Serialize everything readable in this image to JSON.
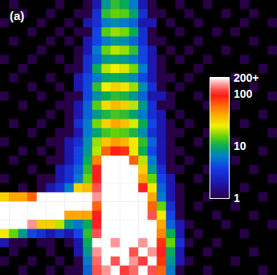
{
  "chart_data": {
    "type": "heatmap",
    "title": "(a)",
    "tick_labels": false,
    "colorbar": {
      "range": [
        1,
        200
      ],
      "ticks": [
        1,
        10,
        100,
        {
          "value": 200,
          "label": "200+"
        }
      ],
      "log": true
    },
    "cells": [
      [
        0,
        1,
        0,
        0,
        0,
        0,
        1,
        0,
        0,
        1,
        2,
        8,
        12,
        10,
        6,
        2,
        1,
        0,
        0,
        1,
        0,
        0,
        1,
        0,
        0,
        0,
        1,
        0,
        0,
        0
      ],
      [
        0,
        0,
        1,
        0,
        0,
        1,
        0,
        0,
        1,
        1,
        3,
        12,
        15,
        14,
        9,
        3,
        1,
        1,
        0,
        0,
        1,
        0,
        0,
        0,
        1,
        0,
        0,
        1,
        0,
        0
      ],
      [
        1,
        0,
        0,
        0,
        1,
        0,
        0,
        1,
        0,
        2,
        3,
        6,
        7,
        6,
        5,
        2,
        2,
        0,
        1,
        0,
        0,
        1,
        0,
        0,
        0,
        0,
        1,
        0,
        0,
        1
      ],
      [
        0,
        0,
        0,
        1,
        0,
        0,
        1,
        0,
        1,
        1,
        4,
        14,
        18,
        16,
        10,
        3,
        1,
        0,
        0,
        1,
        0,
        0,
        0,
        1,
        0,
        1,
        0,
        0,
        0,
        0
      ],
      [
        0,
        1,
        0,
        0,
        0,
        1,
        0,
        1,
        0,
        2,
        4,
        6,
        8,
        7,
        5,
        3,
        1,
        1,
        0,
        0,
        0,
        1,
        0,
        0,
        0,
        0,
        0,
        1,
        0,
        0
      ],
      [
        0,
        0,
        0,
        0,
        1,
        0,
        0,
        0,
        1,
        2,
        6,
        15,
        20,
        18,
        12,
        4,
        2,
        0,
        1,
        0,
        1,
        0,
        0,
        0,
        1,
        0,
        0,
        0,
        0,
        1
      ],
      [
        1,
        0,
        0,
        1,
        0,
        0,
        1,
        0,
        1,
        3,
        5,
        8,
        9,
        8,
        6,
        4,
        2,
        1,
        0,
        1,
        0,
        0,
        1,
        0,
        0,
        0,
        1,
        0,
        0,
        0
      ],
      [
        0,
        0,
        1,
        0,
        0,
        0,
        0,
        1,
        1,
        3,
        10,
        20,
        24,
        22,
        16,
        6,
        2,
        1,
        0,
        0,
        0,
        1,
        0,
        0,
        0,
        0,
        0,
        0,
        1,
        0
      ],
      [
        0,
        1,
        0,
        0,
        0,
        1,
        0,
        0,
        2,
        4,
        6,
        9,
        10,
        9,
        7,
        4,
        2,
        1,
        1,
        0,
        1,
        0,
        0,
        0,
        0,
        1,
        0,
        0,
        0,
        0
      ],
      [
        0,
        0,
        0,
        1,
        0,
        0,
        1,
        0,
        2,
        4,
        12,
        24,
        30,
        26,
        18,
        7,
        3,
        1,
        0,
        1,
        0,
        0,
        0,
        1,
        0,
        0,
        0,
        1,
        0,
        0
      ],
      [
        1,
        0,
        0,
        0,
        1,
        0,
        0,
        1,
        1,
        4,
        7,
        10,
        12,
        11,
        8,
        5,
        2,
        2,
        1,
        0,
        0,
        1,
        0,
        0,
        0,
        0,
        0,
        0,
        0,
        1
      ],
      [
        0,
        0,
        1,
        0,
        0,
        0,
        1,
        1,
        2,
        5,
        14,
        28,
        35,
        30,
        20,
        8,
        3,
        1,
        1,
        0,
        0,
        0,
        1,
        0,
        0,
        1,
        0,
        0,
        0,
        0
      ],
      [
        0,
        0,
        0,
        0,
        0,
        1,
        0,
        1,
        2,
        5,
        8,
        11,
        13,
        12,
        9,
        6,
        3,
        2,
        0,
        1,
        0,
        0,
        0,
        0,
        1,
        0,
        0,
        0,
        1,
        0
      ],
      [
        0,
        1,
        0,
        0,
        1,
        0,
        0,
        1,
        3,
        6,
        16,
        30,
        40,
        34,
        22,
        10,
        4,
        2,
        1,
        0,
        1,
        0,
        0,
        0,
        0,
        0,
        1,
        0,
        0,
        0
      ],
      [
        0,
        0,
        0,
        1,
        0,
        0,
        1,
        1,
        2,
        6,
        9,
        13,
        15,
        14,
        11,
        7,
        3,
        2,
        1,
        1,
        0,
        0,
        1,
        0,
        0,
        0,
        0,
        0,
        0,
        1
      ],
      [
        1,
        0,
        0,
        0,
        0,
        1,
        1,
        2,
        3,
        7,
        18,
        32,
        42,
        36,
        25,
        12,
        5,
        2,
        1,
        0,
        0,
        1,
        0,
        0,
        0,
        1,
        0,
        0,
        0,
        0
      ],
      [
        0,
        0,
        1,
        0,
        1,
        0,
        1,
        2,
        4,
        8,
        20,
        60,
        90,
        80,
        25,
        10,
        4,
        2,
        1,
        1,
        0,
        0,
        0,
        1,
        0,
        0,
        0,
        0,
        1,
        0
      ],
      [
        0,
        1,
        0,
        0,
        0,
        1,
        1,
        2,
        4,
        10,
        50,
        200,
        200,
        200,
        60,
        20,
        6,
        2,
        1,
        0,
        1,
        0,
        0,
        0,
        0,
        1,
        0,
        0,
        0,
        0
      ],
      [
        0,
        0,
        0,
        1,
        0,
        0,
        2,
        3,
        5,
        12,
        100,
        200,
        200,
        200,
        200,
        30,
        8,
        3,
        1,
        1,
        0,
        0,
        1,
        0,
        0,
        0,
        0,
        1,
        0,
        0
      ],
      [
        1,
        0,
        0,
        0,
        1,
        1,
        2,
        3,
        6,
        15,
        100,
        200,
        200,
        200,
        200,
        40,
        15,
        4,
        2,
        0,
        0,
        1,
        0,
        0,
        0,
        0,
        0,
        0,
        0,
        1
      ],
      [
        0,
        0,
        1,
        0,
        1,
        2,
        3,
        6,
        30,
        35,
        120,
        200,
        200,
        200,
        200,
        100,
        25,
        5,
        2,
        1,
        0,
        0,
        0,
        1,
        0,
        0,
        1,
        0,
        0,
        0
      ],
      [
        30,
        40,
        40,
        60,
        200,
        200,
        200,
        200,
        200,
        200,
        150,
        200,
        200,
        200,
        200,
        200,
        40,
        6,
        2,
        1,
        0,
        0,
        1,
        0,
        0,
        0,
        0,
        0,
        1,
        0
      ],
      [
        200,
        200,
        200,
        200,
        200,
        200,
        200,
        200,
        200,
        200,
        60,
        200,
        200,
        200,
        200,
        200,
        60,
        15,
        3,
        1,
        0,
        1,
        0,
        0,
        0,
        1,
        0,
        0,
        0,
        0
      ],
      [
        200,
        200,
        200,
        200,
        200,
        200,
        200,
        40,
        40,
        40,
        100,
        200,
        200,
        200,
        200,
        200,
        120,
        25,
        4,
        1,
        0,
        0,
        0,
        1,
        0,
        0,
        0,
        1,
        0,
        0
      ],
      [
        200,
        200,
        200,
        150,
        30,
        30,
        20,
        8,
        6,
        10,
        100,
        200,
        200,
        200,
        200,
        200,
        200,
        40,
        5,
        2,
        1,
        0,
        0,
        0,
        1,
        0,
        0,
        0,
        0,
        1
      ],
      [
        25,
        15,
        8,
        4,
        3,
        2,
        3,
        2,
        4,
        12,
        120,
        200,
        200,
        200,
        200,
        200,
        200,
        50,
        10,
        2,
        0,
        1,
        0,
        0,
        0,
        0,
        1,
        0,
        0,
        0
      ],
      [
        2,
        1,
        1,
        0,
        1,
        1,
        0,
        1,
        2,
        10,
        200,
        200,
        150,
        200,
        200,
        150,
        200,
        80,
        15,
        3,
        1,
        0,
        0,
        1,
        0,
        0,
        0,
        0,
        0,
        0
      ],
      [
        0,
        1,
        0,
        0,
        0,
        1,
        0,
        0,
        2,
        8,
        150,
        200,
        200,
        200,
        120,
        200,
        150,
        100,
        10,
        2,
        0,
        0,
        1,
        0,
        0,
        0,
        0,
        1,
        0,
        0
      ],
      [
        1,
        0,
        0,
        1,
        0,
        0,
        1,
        0,
        1,
        6,
        130,
        200,
        120,
        200,
        150,
        110,
        200,
        80,
        8,
        2,
        1,
        0,
        0,
        0,
        0,
        1,
        0,
        0,
        0,
        0
      ],
      [
        0,
        0,
        1,
        0,
        0,
        1,
        0,
        1,
        1,
        5,
        120,
        150,
        200,
        110,
        130,
        200,
        120,
        60,
        6,
        1,
        0,
        0,
        1,
        0,
        0,
        0,
        0,
        0,
        1,
        0
      ]
    ]
  }
}
